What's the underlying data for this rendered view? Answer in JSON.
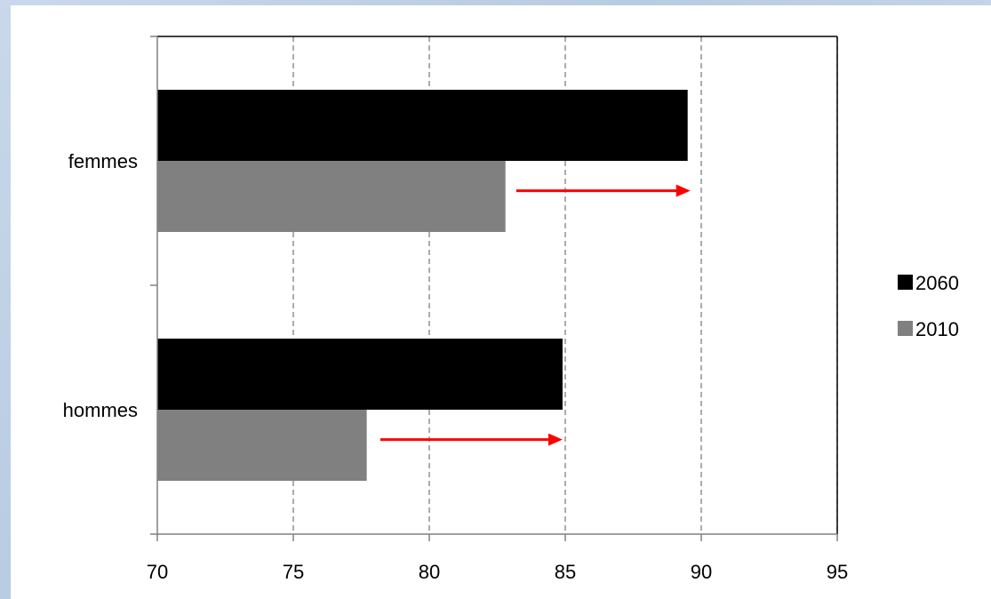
{
  "chart_data": {
    "type": "bar",
    "orientation": "horizontal",
    "categories": [
      "femmes",
      "hommes"
    ],
    "series": [
      {
        "name": "2060",
        "values": [
          89.5,
          84.9
        ],
        "color": "#000000"
      },
      {
        "name": "2010",
        "values": [
          82.8,
          77.7
        ],
        "color": "#808080"
      }
    ],
    "xlim": [
      70,
      95
    ],
    "xticks": [
      70,
      75,
      80,
      85,
      90,
      95
    ],
    "grid": "vertical-dashed",
    "legend_position": "right",
    "arrows": [
      {
        "category": "femmes",
        "from": 83.2,
        "to": 89.6,
        "color": "#ff0000"
      },
      {
        "category": "hommes",
        "from": 78.2,
        "to": 84.9,
        "color": "#ff0000"
      }
    ],
    "title": "",
    "xlabel": "",
    "ylabel": ""
  }
}
